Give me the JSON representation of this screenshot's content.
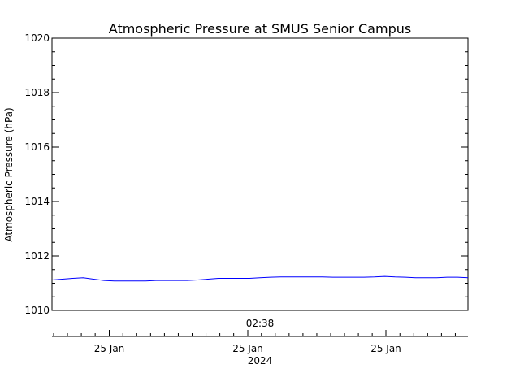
{
  "chart_data": {
    "type": "line",
    "title": "Atmospheric Pressure at SMUS Senior Campus",
    "ylabel": "Atmospheric Pressure (hPa)",
    "ylim": [
      1010,
      1020
    ],
    "y_ticks": [
      "1010",
      "1012",
      "1014",
      "1016",
      "1018",
      "1020"
    ],
    "y_minor_step": 0.5,
    "y_major_step": 2,
    "x_top_label": "02:38",
    "x_tick_labels": [
      "25 Jan",
      "25 Jan",
      "25 Jan"
    ],
    "x_year_label": "2024",
    "grid": false,
    "series": [
      {
        "color": "#0000ff",
        "values": [
          1011.12,
          1011.15,
          1011.18,
          1011.2,
          1011.15,
          1011.1,
          1011.08,
          1011.08,
          1011.08,
          1011.08,
          1011.1,
          1011.1,
          1011.1,
          1011.1,
          1011.12,
          1011.15,
          1011.18,
          1011.18,
          1011.18,
          1011.18,
          1011.2,
          1011.22,
          1011.23,
          1011.23,
          1011.23,
          1011.23,
          1011.23,
          1011.22,
          1011.22,
          1011.22,
          1011.22,
          1011.23,
          1011.25,
          1011.23,
          1011.22,
          1011.2,
          1011.2,
          1011.2,
          1011.22,
          1011.22,
          1011.2
        ]
      }
    ]
  }
}
